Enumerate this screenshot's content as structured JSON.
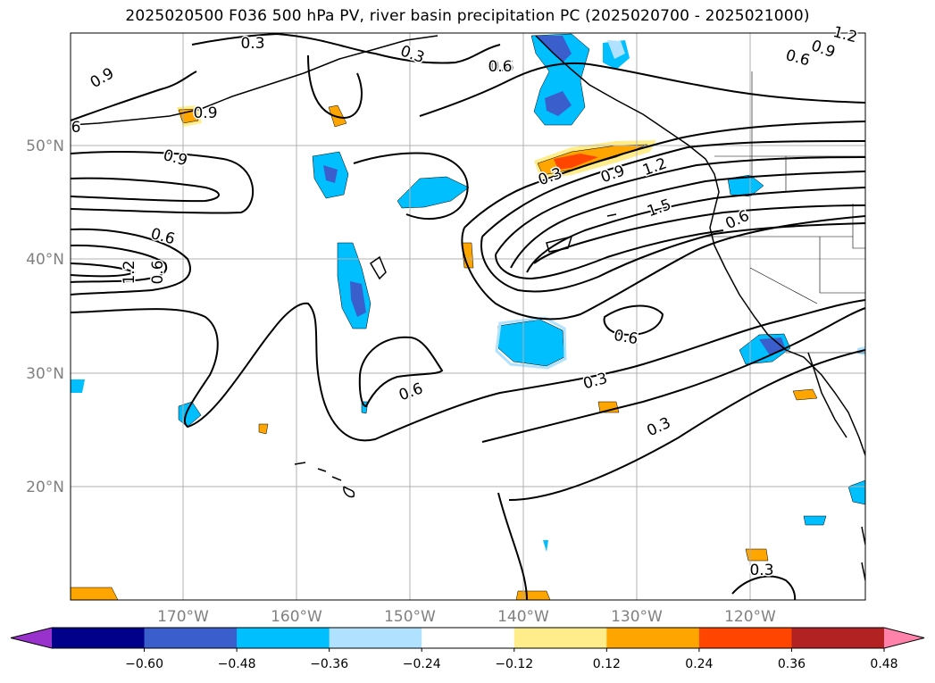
{
  "title": "2025020500 F036 500 hPa PV, river basin precipitation PC (2025020700 - 2025021000)",
  "map": {
    "lat_labels": [
      "50°N",
      "40°N",
      "30°N",
      "20°N"
    ],
    "lon_labels": [
      "170°W",
      "160°W",
      "150°W",
      "140°W",
      "130°W",
      "120°W"
    ],
    "contour_labels": [
      "0.3",
      "0.3",
      "0.6",
      "0.9",
      "1.2",
      "0.6",
      "0.9",
      "0.9",
      "0.6",
      "0.6",
      "1.2",
      "0.9",
      "0.3",
      "0.9",
      "1.2",
      "1.5",
      "0.6",
      "0.6",
      "0.6",
      "0.3",
      "0.3",
      "0.3",
      "6",
      "0.6"
    ]
  },
  "colorbar": {
    "ticks": [
      "−0.60",
      "−0.48",
      "−0.36",
      "−0.24",
      "−0.12",
      "0.12",
      "0.24",
      "0.36",
      "0.48",
      "0.60"
    ],
    "colors": [
      "#9932cc",
      "#00008b",
      "#3a5fcd",
      "#00bfff",
      "#b0e2ff",
      "#ffffff",
      "#ffec8b",
      "#ffa500",
      "#ff4500",
      "#b22222",
      "#ff82ab"
    ]
  }
}
